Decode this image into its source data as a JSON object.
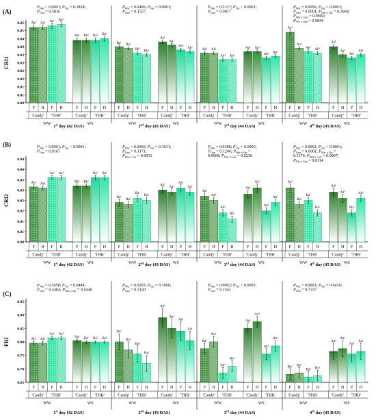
{
  "chart_data": [
    {
      "type": "bar",
      "panel_label": "(A)",
      "ylabel": "CRI1",
      "ylim": [
        0,
        0.05
      ],
      "yticks": [
        "0.00",
        "0.01",
        "0.01",
        "0.02",
        "0.02",
        "0.03",
        "0.03",
        "0.04",
        "0.04",
        "0.05",
        "0.05"
      ],
      "ytick_values": [
        0,
        0.005,
        0.01,
        0.015,
        0.02,
        0.025,
        0.03,
        0.035,
        0.04,
        0.045,
        0.05
      ],
      "days": [
        {
          "label": "1st day (42 DAS)",
          "stats": [
            "PWat < 0.0001; PVar = 0.3828;",
            "PGen = 0.5816"
          ],
          "values": [
            0.047,
            0.047,
            0.048,
            0.049,
            0.039,
            0.039,
            0.039,
            0.04
          ],
          "errors": [
            0.0015,
            0.0015,
            0.0015,
            0.0015,
            0.0015,
            0.0015,
            0.0015,
            0.0015
          ],
          "letters": [
            "Aa¹",
            "Aa¹",
            "Aa¹",
            "Aa¹",
            "Ba¹",
            "Bb¹",
            "Ba¹",
            "Ba¹"
          ]
        },
        {
          "label": "2nd day (43 DAS)",
          "stats": [
            "PWat = 0.0496; PVar = 0.0001;",
            "PGen = 0.1557"
          ],
          "values": [
            0.035,
            0.034,
            0.031,
            0.03,
            0.038,
            0.036,
            0.033,
            0.032
          ],
          "errors": [
            0.001,
            0.001,
            0.001,
            0.001,
            0.001,
            0.001,
            0.001,
            0.001
          ],
          "letters": [
            "Ba¹",
            "Ba¹",
            "Hb¹",
            "Bb¹",
            "Aa¹",
            "Aa¹",
            "Ab¹",
            "Ab¹"
          ]
        },
        {
          "label": "3rd day (44 DAS)",
          "stats": [
            "PWat = 0.5137; PVar < 0.0001;",
            "PGen = 0.9017"
          ],
          "values": [
            0.031,
            0.031,
            0.027,
            0.027,
            0.032,
            0.032,
            0.028,
            0.029
          ],
          "errors": [
            0.001,
            0.001,
            0.001,
            0.001,
            0.001,
            0.001,
            0.001,
            0.001
          ],
          "letters": [
            "Aa¹",
            "Aa¹",
            "Ab¹",
            "Ab¹",
            "Aa¹",
            "Aa¹",
            "Ab¹",
            "Ab¹"
          ]
        },
        {
          "label": "4th day (45 DAS)",
          "stats": [
            "PWat = 0.0056; PVar < 0.0001;",
            "PGen = 0.0001; PWat x Var = 0.3068;",
            "PWat x Gen = 0.0902;",
            "PVar x Gen = 0.5844"
          ],
          "values": [
            0.044,
            0.034,
            0.032,
            0.031,
            0.035,
            0.03,
            0.028,
            0.03
          ],
          "errors": [
            0.0015,
            0.001,
            0.001,
            0.001,
            0.0015,
            0.001,
            0.001,
            0.001
          ],
          "letters": [
            "Aa¹",
            "Aa¹",
            "Ab¹",
            "Ab¹",
            "Aa¹",
            "Aa²",
            "Ab¹",
            "Ab¹"
          ]
        }
      ]
    },
    {
      "type": "bar",
      "panel_label": "(B)",
      "ylabel": "CRI2",
      "ylim": [
        0,
        0.04
      ],
      "yticks": [
        "0.00",
        "0.01",
        "0.01",
        "0.02",
        "0.02",
        "0.03",
        "0.03",
        "0.04",
        "0.04"
      ],
      "ytick_values": [
        0,
        0.005,
        0.01,
        0.015,
        0.02,
        0.025,
        0.03,
        0.035,
        0.04
      ],
      "days": [
        {
          "label": "1st day (42 DAS)",
          "stats": [
            "PWat = 0.0001; PVar < 0.0001;",
            "PGen = 0.9167"
          ],
          "values": [
            0.0265,
            0.026,
            0.031,
            0.031,
            0.027,
            0.027,
            0.031,
            0.031
          ],
          "errors": [
            0.001,
            0.001,
            0.001,
            0.001,
            0.001,
            0.001,
            0.001,
            0.001
          ],
          "letters": [
            "Ab¹",
            "Ab¹",
            "Aa¹",
            "Aa¹",
            "Bb¹",
            "Bb¹",
            "Ba¹",
            "Ba¹"
          ]
        },
        {
          "label": "2nd day (43 DAS)",
          "stats": [
            "PWat = 0.0060; PVar = 0.3631;",
            "PGen = 0.1171;",
            "PWat x Var = 0.0031"
          ],
          "values": [
            0.019,
            0.018,
            0.021,
            0.02,
            0.025,
            0.024,
            0.026,
            0.024
          ],
          "errors": [
            0.0015,
            0.0015,
            0.0015,
            0.0015,
            0.0015,
            0.0015,
            0.0015,
            0.0015
          ],
          "letters": [
            "Ba¹",
            "Ba¹",
            "Ba¹",
            "Ba¹",
            "Aa¹",
            "Aa¹",
            "Aa¹",
            "Aa¹"
          ]
        },
        {
          "label": "3rd day (44 DAS)",
          "stats": [
            "PWat = 0.9388; PVar = 0.0005;",
            "PGen = 0.1246; PWat x Var =",
            "0.9068; PWat x Gen = 0.0230"
          ],
          "values": [
            0.022,
            0.02,
            0.014,
            0.011,
            0.023,
            0.026,
            0.015,
            0.019
          ],
          "errors": [
            0.0015,
            0.0015,
            0.0015,
            0.0015,
            0.002,
            0.002,
            0.0015,
            0.0015
          ],
          "letters": [
            "Aa¹",
            "Aa¹",
            "Ab¹",
            "Bb¹",
            "Aa¹",
            "Aa¹",
            "Ab¹",
            "Ab¹"
          ]
        },
        {
          "label": "4th day (45 DAS)",
          "stats": [
            "PWat = 0.0062; PVar < 0.0001;",
            "PGen = 0.0001; PWat x Var =",
            "0.1374; PWat x Gen = 0.0007;",
            "PVar x Gen = 0.0114"
          ],
          "values": [
            0.026,
            0.018,
            0.02,
            0.014,
            0.024,
            0.021,
            0.014,
            0.021
          ],
          "errors": [
            0.002,
            0.0015,
            0.0015,
            0.0015,
            0.002,
            0.002,
            0.0015,
            0.0015
          ],
          "letters": [
            "Aa¹",
            "Ba¹",
            "Ba¹",
            "Ba¹",
            "Aa¹",
            "Aa¹",
            "Bb¹",
            "Ab¹"
          ]
        }
      ]
    },
    {
      "type": "bar",
      "panel_label": "(C)",
      "ylabel": "FRI",
      "ylim": [
        0.65,
        0.95
      ],
      "yticks": [
        "0.65",
        "0.70",
        "0.75",
        "0.80",
        "0.85",
        "0.90",
        "0.95"
      ],
      "ytick_values": [
        0.65,
        0.7,
        0.75,
        0.8,
        0.85,
        0.9,
        0.95
      ],
      "days": [
        {
          "label": "1st day (42 DAS)",
          "stats": [
            "PWat = 0.3658; PVar = 0.0484;",
            "PGen = 0.4404; PWat x Var = 0.0440"
          ],
          "values": [
            0.795,
            0.795,
            0.815,
            0.815,
            0.805,
            0.8,
            0.8,
            0.8
          ],
          "errors": [
            0.007,
            0.007,
            0.007,
            0.007,
            0.005,
            0.005,
            0.005,
            0.005
          ],
          "letters": [
            "Ab¹",
            "Ab¹",
            "Aa¹",
            "Aa¹",
            "Aa¹",
            "Ba¹",
            "Ba¹",
            "Ba¹"
          ]
        },
        {
          "label": "2nd day (43 DAS)",
          "stats": [
            "PWat = 0.0265; PVar = 0.1966;",
            "PGen = 0.3120"
          ],
          "values": [
            0.8,
            0.77,
            0.755,
            0.72,
            0.89,
            0.85,
            0.84,
            0.805
          ],
          "errors": [
            0.03,
            0.03,
            0.03,
            0.03,
            0.035,
            0.035,
            0.035,
            0.035
          ],
          "letters": [
            "Ba¹",
            "Ba¹",
            "Ba¹",
            "Ba¹",
            "Aa¹",
            "Aa¹",
            "Aa¹",
            "Aa¹"
          ]
        },
        {
          "label": "3rd day (44 DAS)",
          "stats": [
            "PWat = 0.0002; PVar < 0.0001;",
            "PGen = 0.1541"
          ],
          "values": [
            0.775,
            0.8,
            0.685,
            0.71,
            0.85,
            0.875,
            0.755,
            0.785
          ],
          "errors": [
            0.02,
            0.02,
            0.02,
            0.02,
            0.02,
            0.02,
            0.02,
            0.02
          ],
          "letters": [
            "Ba¹",
            "Ba¹",
            "Bb¹",
            "Bb¹",
            "Aa¹",
            "Aa¹",
            "Ab¹",
            "Ab¹"
          ]
        },
        {
          "label": "4th day (45 DAS)",
          "stats": [
            "PWat = 0.0001; PVar = 0.6416;",
            "PGen = 0.7337"
          ],
          "values": [
            0.68,
            0.685,
            0.67,
            0.675,
            0.765,
            0.775,
            0.755,
            0.765
          ],
          "errors": [
            0.02,
            0.02,
            0.02,
            0.02,
            0.03,
            0.03,
            0.03,
            0.03
          ],
          "letters": [
            "Ba¹",
            "Ba¹",
            "Ba¹",
            "Ba¹",
            "Aa¹",
            "Aa¹",
            "Aa¹",
            "Aa¹"
          ]
        }
      ]
    }
  ],
  "x_labels": {
    "genotypes": [
      "F",
      "H",
      "F",
      "H",
      "F",
      "H",
      "F",
      "H"
    ],
    "varieties": [
      "'Candy'",
      "'THB'",
      "'Candy'",
      "'THB'"
    ],
    "water": [
      "WW",
      "WS"
    ]
  },
  "colors": {
    "ww_candy": "#3a8a3a",
    "ww_thb": "#2fe6a4",
    "ws_candy": "#2e7d32",
    "ws_thb": "#25d8a0"
  }
}
